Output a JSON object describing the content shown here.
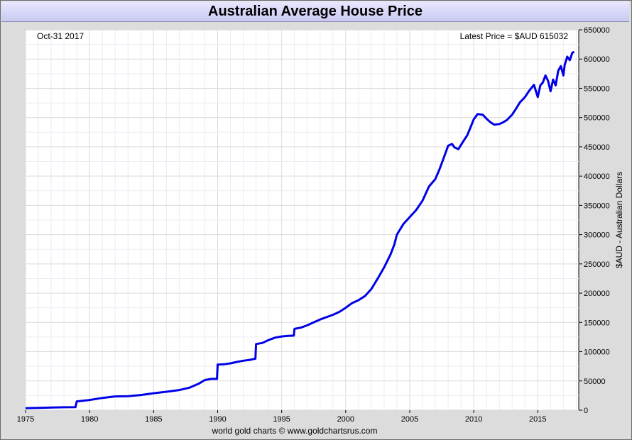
{
  "title": "Australian Average House Price",
  "footer": "world gold charts © www.goldchartsrus.com",
  "chart_data": {
    "type": "line",
    "title": "Australian Average House Price",
    "date_label": "Oct-31  2017",
    "latest_label": "Latest Price = $AUD 615032",
    "ylabel": "$AUD - Australian Dollars",
    "xlabel": "",
    "xlim": [
      1975,
      2018.2
    ],
    "ylim": [
      0,
      650000
    ],
    "x_ticks": [
      1975,
      1980,
      1985,
      1990,
      1995,
      2000,
      2005,
      2010,
      2015
    ],
    "y_ticks": [
      0,
      50000,
      100000,
      150000,
      200000,
      250000,
      300000,
      350000,
      400000,
      450000,
      500000,
      550000,
      600000,
      650000
    ],
    "grid": true,
    "line_color": "#0000e6",
    "series": [
      {
        "x": [
          1975.0,
          1976.0,
          1977.0,
          1978.0,
          1978.9,
          1979.0,
          1980.0,
          1981.0,
          1982.0,
          1983.0,
          1984.0,
          1985.0,
          1986.0,
          1987.0,
          1987.8,
          1988.5,
          1989.0,
          1989.5,
          1989.95,
          1990.0,
          1990.5,
          1991.0,
          1991.5,
          1992.0,
          1992.5,
          1992.95,
          1993.0,
          1993.5,
          1994.0,
          1994.5,
          1995.0,
          1995.5,
          1995.95,
          1996.0,
          1996.5,
          1997.0,
          1997.5,
          1998.0,
          1998.5,
          1999.0,
          1999.5,
          2000.0,
          2000.5,
          2001.0,
          2001.5,
          2002.0,
          2002.5,
          2003.0,
          2003.5,
          2003.8,
          2004.0,
          2004.5,
          2005.0,
          2005.5,
          2006.0,
          2006.5,
          2007.0,
          2007.3,
          2007.6,
          2008.0,
          2008.3,
          2008.5,
          2008.8,
          2009.2,
          2009.5,
          2009.8,
          2010.0,
          2010.3,
          2010.7,
          2011.0,
          2011.3,
          2011.6,
          2012.0,
          2012.3,
          2012.6,
          2013.0,
          2013.3,
          2013.6,
          2014.0,
          2014.3,
          2014.7,
          2015.0,
          2015.2,
          2015.4,
          2015.6,
          2015.8,
          2016.0,
          2016.2,
          2016.4,
          2016.6,
          2016.8,
          2017.0,
          2017.1,
          2017.3,
          2017.5,
          2017.7,
          2017.85
        ],
        "y": [
          3500,
          4000,
          4500,
          5000,
          5200,
          15000,
          17500,
          21000,
          23500,
          24000,
          26000,
          29000,
          31500,
          34500,
          38500,
          45000,
          51500,
          53500,
          53500,
          78000,
          78500,
          80000,
          82500,
          84500,
          86000,
          88000,
          113000,
          115000,
          120000,
          124000,
          126000,
          127000,
          127500,
          139000,
          141000,
          145000,
          150000,
          155000,
          159000,
          163000,
          168000,
          175000,
          183000,
          188000,
          195000,
          207000,
          225000,
          244000,
          266000,
          283000,
          300000,
          318000,
          330000,
          342000,
          358000,
          382000,
          395000,
          410000,
          428000,
          452000,
          455000,
          449000,
          446000,
          460000,
          470000,
          486000,
          497000,
          506000,
          505000,
          498000,
          492000,
          488000,
          489000,
          492000,
          496000,
          505000,
          515000,
          526000,
          535000,
          545000,
          556000,
          535000,
          555000,
          560000,
          572000,
          563000,
          545000,
          565000,
          555000,
          580000,
          588000,
          572000,
          590000,
          604000,
          598000,
          611000,
          612000
        ]
      }
    ]
  }
}
